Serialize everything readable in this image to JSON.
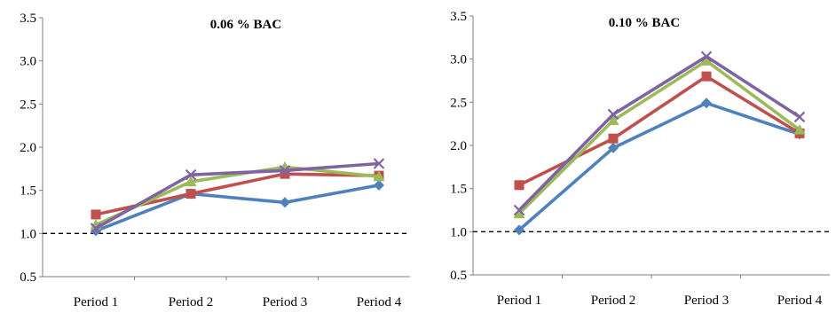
{
  "chart_data": [
    {
      "type": "line",
      "title": "0.06 % BAC",
      "categories": [
        "Period 1",
        "Period 2",
        "Period 3",
        "Period 4"
      ],
      "ylim": [
        0.5,
        3.5
      ],
      "yticks": [
        "0.5",
        "1.0",
        "1.5",
        "2.0",
        "2.5",
        "3.0",
        "3.5"
      ],
      "reference_line": 1.0,
      "grid": false,
      "legend": "none",
      "series": [
        {
          "values": [
            1.03,
            1.46,
            1.36,
            1.56
          ],
          "color": "#4f81bd",
          "marker": "diamond"
        },
        {
          "values": [
            1.22,
            1.46,
            1.69,
            1.67
          ],
          "color": "#c0504d",
          "marker": "square"
        },
        {
          "values": [
            1.1,
            1.6,
            1.77,
            1.66
          ],
          "color": "#9bbb59",
          "marker": "triangle"
        },
        {
          "values": [
            1.06,
            1.68,
            1.73,
            1.81
          ],
          "color": "#8064a2",
          "marker": "x"
        }
      ]
    },
    {
      "type": "line",
      "title": "0.10 % BAC",
      "categories": [
        "Period 1",
        "Period 2",
        "Period 3",
        "Period 4"
      ],
      "ylim": [
        0.5,
        3.5
      ],
      "yticks": [
        "0.5",
        "1.0",
        "1.5",
        "2.0",
        "2.5",
        "3.0",
        "3.5"
      ],
      "reference_line": 1.0,
      "grid": false,
      "legend": "none",
      "series": [
        {
          "values": [
            1.02,
            1.97,
            2.49,
            2.13
          ],
          "color": "#4f81bd",
          "marker": "diamond"
        },
        {
          "values": [
            1.54,
            2.08,
            2.8,
            2.14
          ],
          "color": "#c0504d",
          "marker": "square"
        },
        {
          "values": [
            1.21,
            2.29,
            2.98,
            2.18
          ],
          "color": "#9bbb59",
          "marker": "triangle"
        },
        {
          "values": [
            1.25,
            2.36,
            3.03,
            2.33
          ],
          "color": "#8064a2",
          "marker": "x"
        }
      ]
    }
  ]
}
